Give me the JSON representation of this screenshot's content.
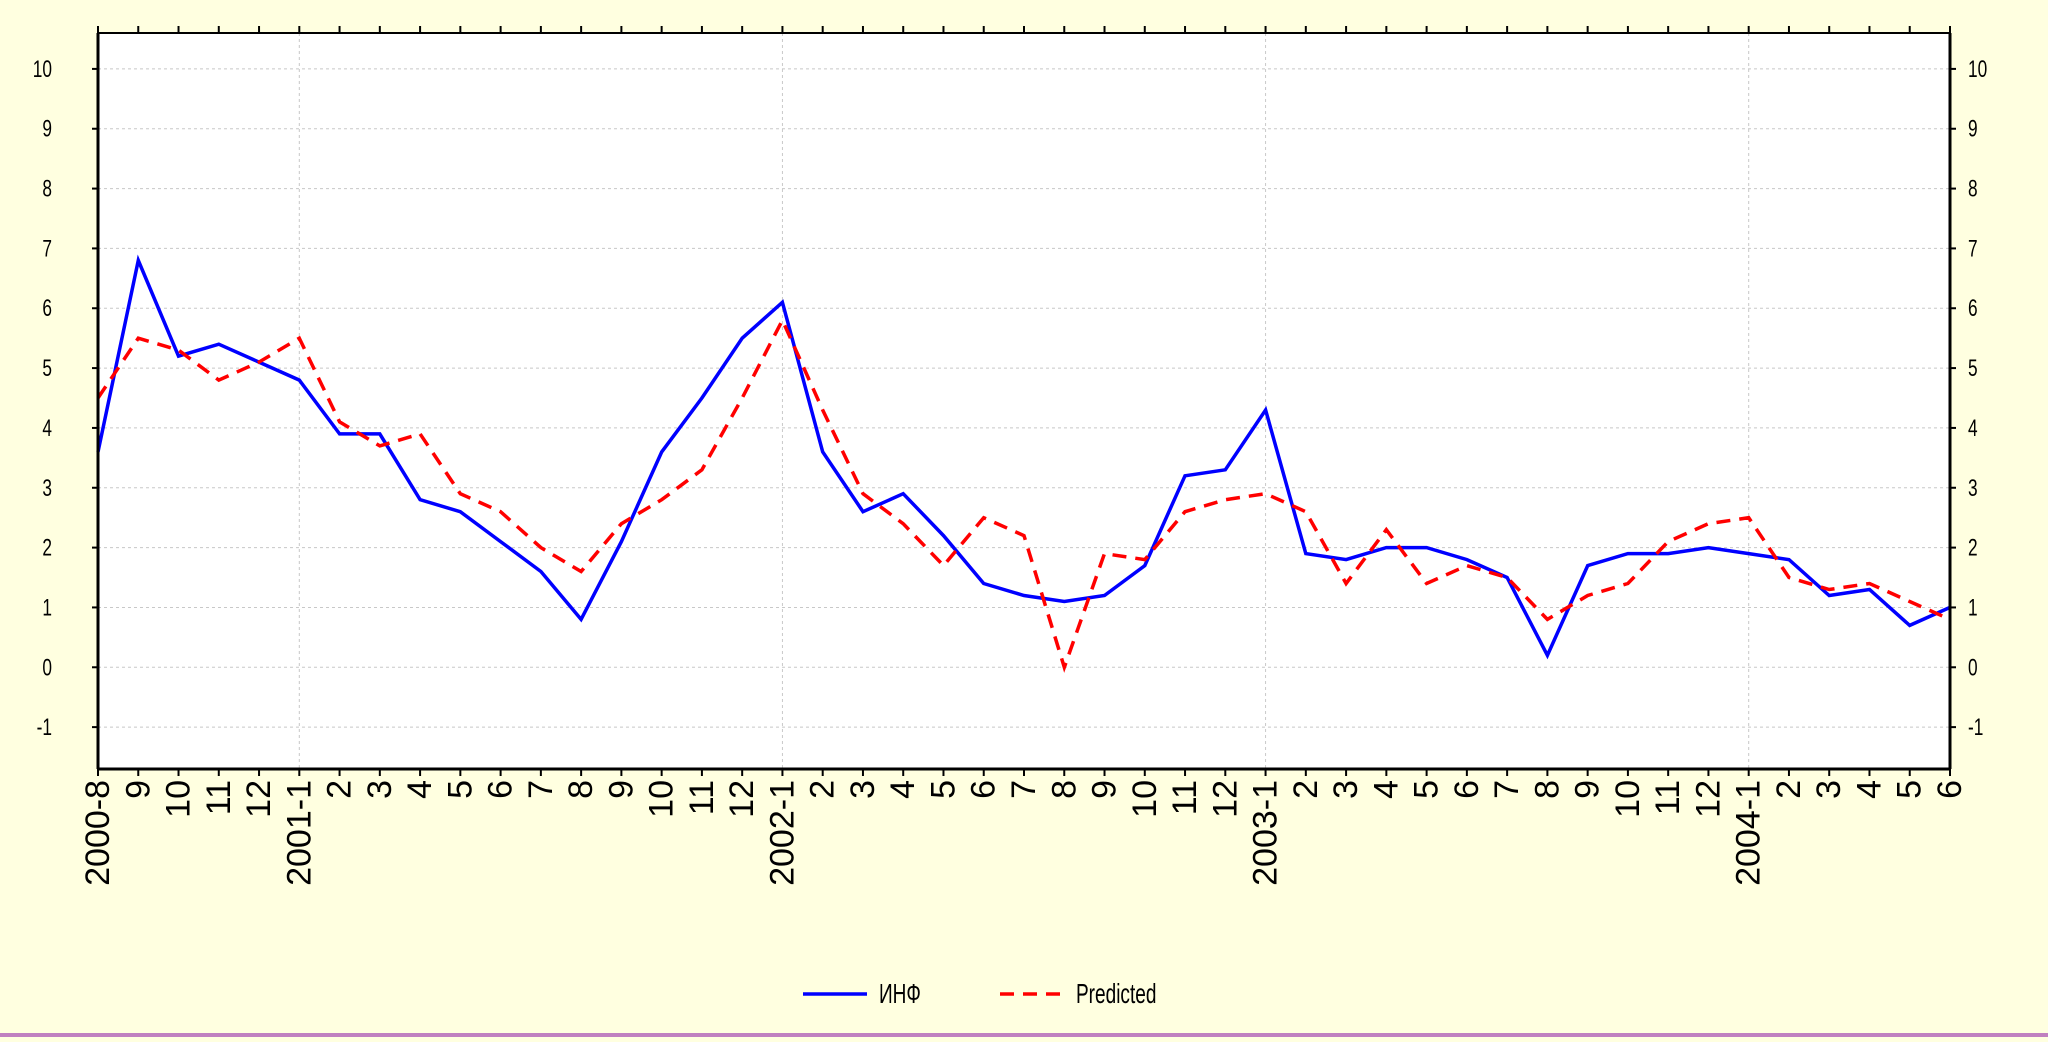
{
  "chart_data": {
    "type": "line",
    "title": "",
    "xlabel": "",
    "ylabel": "",
    "ylim": [
      -1.7,
      10.6
    ],
    "y_ticks": [
      -1,
      0,
      1,
      2,
      3,
      4,
      5,
      6,
      7,
      8,
      9,
      10
    ],
    "y_axis_right_mirrored": true,
    "grid": true,
    "legend_position": "bottom-center",
    "x_tick_labels": [
      "2000-8",
      "9",
      "10",
      "11",
      "12",
      "2001-1",
      "2",
      "3",
      "4",
      "5",
      "6",
      "7",
      "8",
      "9",
      "10",
      "11",
      "12",
      "2002-1",
      "2",
      "3",
      "4",
      "5",
      "6",
      "7",
      "8",
      "9",
      "10",
      "11",
      "12",
      "2003-1",
      "2",
      "3",
      "4",
      "5",
      "6",
      "7",
      "8",
      "9",
      "10",
      "11",
      "12",
      "2004-1",
      "2",
      "3",
      "4",
      "5",
      "6"
    ],
    "series": [
      {
        "name": "ИНФ",
        "color": "#0000ff",
        "style": "solid",
        "x": [
          0,
          1,
          2,
          3,
          4,
          5,
          6,
          7,
          8,
          9,
          10,
          11,
          12,
          13,
          14,
          15,
          16,
          17,
          18,
          19,
          20,
          21,
          22,
          23,
          24,
          25,
          26,
          27,
          28,
          29,
          30,
          31,
          32,
          33,
          34,
          35,
          36,
          37,
          38,
          39,
          40,
          41,
          42,
          43,
          44,
          45,
          46
        ],
        "values": [
          3.6,
          6.8,
          5.2,
          5.4,
          5.1,
          4.8,
          3.9,
          3.9,
          2.8,
          2.6,
          2.1,
          1.6,
          0.8,
          2.1,
          3.6,
          4.5,
          5.5,
          6.1,
          3.6,
          2.6,
          2.9,
          2.2,
          1.4,
          1.2,
          1.1,
          1.2,
          1.7,
          3.2,
          3.3,
          4.3,
          1.9,
          1.8,
          2.0,
          2.0,
          1.8,
          1.5,
          0.2,
          1.7,
          1.9,
          1.9,
          2.0,
          1.9,
          1.8,
          1.2,
          1.3,
          0.7,
          1.0
        ]
      },
      {
        "name": "Predicted",
        "color": "#ff0000",
        "style": "dashed",
        "x": [
          0,
          1,
          2,
          3,
          4,
          5,
          6,
          7,
          8,
          9,
          10,
          11,
          12,
          13,
          14,
          15,
          16,
          17,
          18,
          19,
          20,
          21,
          22,
          23,
          24,
          25,
          26,
          27,
          28,
          29,
          30,
          31,
          32,
          33,
          34,
          35,
          36,
          37,
          38,
          39,
          40,
          41,
          42,
          43,
          44,
          45,
          46
        ],
        "values": [
          4.5,
          5.5,
          5.3,
          4.8,
          5.1,
          5.5,
          4.1,
          3.7,
          3.9,
          2.9,
          2.6,
          2.0,
          1.6,
          2.4,
          2.8,
          3.3,
          4.5,
          5.8,
          4.3,
          2.9,
          2.4,
          1.7,
          2.5,
          2.2,
          0.0,
          1.9,
          1.8,
          2.6,
          2.8,
          2.9,
          2.6,
          1.4,
          2.3,
          1.4,
          1.7,
          1.5,
          0.8,
          1.2,
          1.4,
          2.1,
          2.4,
          2.5,
          1.5,
          1.3,
          1.4,
          1.1,
          0.8
        ]
      }
    ]
  }
}
